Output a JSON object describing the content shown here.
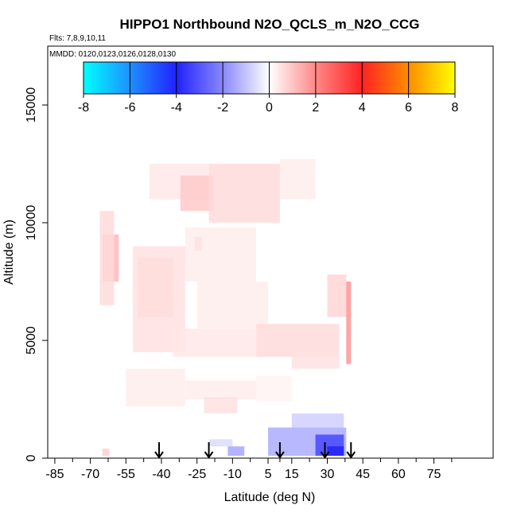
{
  "chart_data": {
    "type": "heatmap",
    "title": "HIPPO1 Northbound N2O_QCLS_m_N2O_CCG",
    "flights_label": "Flts: 7,8,9,10,11",
    "mmdd_label": "MMDD: 0120,0123,0126,0128,0130",
    "xlabel": "Latitude (deg N)",
    "ylabel": "Altitude (m)",
    "xlim": [
      -88,
      100
    ],
    "ylim": [
      0,
      17500
    ],
    "x_ticks": [
      -85,
      -70,
      -55,
      -40,
      -25,
      -10,
      5,
      15,
      30,
      45,
      60,
      75
    ],
    "x_tick_labels": [
      "-85",
      "-70",
      "-55",
      "-40",
      "-25",
      "-10",
      "5",
      "15",
      "30",
      "45",
      "60",
      "75"
    ],
    "y_ticks": [
      0,
      5000,
      10000,
      15000
    ],
    "y_tick_labels": [
      "0",
      "5000",
      "10000",
      "15000"
    ],
    "colorbar": {
      "ticks": [
        -8,
        -6,
        -4,
        -2,
        0,
        2,
        4,
        6,
        8
      ],
      "tick_labels": [
        "-8",
        "-6",
        "-4",
        "-2",
        "0",
        "2",
        "4",
        "6",
        "8"
      ],
      "stops": [
        {
          "v": -8,
          "c": "#00ffff"
        },
        {
          "v": -6,
          "c": "#1e90ff"
        },
        {
          "v": -4,
          "c": "#2222ff"
        },
        {
          "v": -2,
          "c": "#8888ff"
        },
        {
          "v": 0,
          "c": "#ffffff"
        },
        {
          "v": 2,
          "c": "#ff8888"
        },
        {
          "v": 4,
          "c": "#ff2222"
        },
        {
          "v": 6,
          "c": "#ff8c00"
        },
        {
          "v": 8,
          "c": "#ffff00"
        }
      ]
    },
    "flight_markers_lat": [
      -41,
      -20,
      10,
      29,
      40
    ],
    "cells": [
      {
        "lat0": -65,
        "lat1": -58,
        "alt0": 7500,
        "alt1": 9500,
        "v": 1.2
      },
      {
        "lat0": -66,
        "lat1": -60,
        "alt0": 6500,
        "alt1": 10500,
        "v": 0.6
      },
      {
        "lat0": -50,
        "lat1": -35,
        "alt0": 6000,
        "alt1": 8500,
        "v": 1.0
      },
      {
        "lat0": -52,
        "lat1": -30,
        "alt0": 4500,
        "alt1": 9000,
        "v": 0.5
      },
      {
        "lat0": -45,
        "lat1": -20,
        "alt0": 11000,
        "alt1": 12500,
        "v": 0.4
      },
      {
        "lat0": -32,
        "lat1": -18,
        "alt0": 10500,
        "alt1": 12000,
        "v": 0.9
      },
      {
        "lat0": -26,
        "lat1": -23,
        "alt0": 8800,
        "alt1": 9400,
        "v": 1.6
      },
      {
        "lat0": -20,
        "lat1": 10,
        "alt0": 10000,
        "alt1": 12500,
        "v": 0.6
      },
      {
        "lat0": 10,
        "lat1": 25,
        "alt0": 11000,
        "alt1": 12700,
        "v": 0.3
      },
      {
        "lat0": -30,
        "lat1": 0,
        "alt0": 7500,
        "alt1": 9800,
        "v": 0.3
      },
      {
        "lat0": -25,
        "lat1": 5,
        "alt0": 5500,
        "alt1": 7500,
        "v": 0.3
      },
      {
        "lat0": -35,
        "lat1": 0,
        "alt0": 4300,
        "alt1": 5500,
        "v": 0.4
      },
      {
        "lat0": 0,
        "lat1": 35,
        "alt0": 4300,
        "alt1": 5700,
        "v": 0.6
      },
      {
        "lat0": 15,
        "lat1": 35,
        "alt0": 3800,
        "alt1": 4500,
        "v": 0.5
      },
      {
        "lat0": 30,
        "lat1": 38,
        "alt0": 6000,
        "alt1": 7800,
        "v": 0.7
      },
      {
        "lat0": 38,
        "lat1": 40,
        "alt0": 4000,
        "alt1": 7500,
        "v": 1.8
      },
      {
        "lat0": -55,
        "lat1": -30,
        "alt0": 2200,
        "alt1": 3800,
        "v": 0.3
      },
      {
        "lat0": -30,
        "lat1": 0,
        "alt0": 2500,
        "alt1": 3300,
        "v": 0.3
      },
      {
        "lat0": -22,
        "lat1": -8,
        "alt0": 1900,
        "alt1": 2600,
        "v": 0.5
      },
      {
        "lat0": 0,
        "lat1": 15,
        "alt0": 2400,
        "alt1": 3500,
        "v": 0.2
      },
      {
        "lat0": -20,
        "lat1": -10,
        "alt0": 500,
        "alt1": 800,
        "v": -0.6
      },
      {
        "lat0": -12,
        "lat1": -5,
        "alt0": 100,
        "alt1": 500,
        "v": -1.5
      },
      {
        "lat0": 5,
        "lat1": 38,
        "alt0": 100,
        "alt1": 1300,
        "v": -1.4
      },
      {
        "lat0": 15,
        "lat1": 37,
        "alt0": 1300,
        "alt1": 1900,
        "v": -0.8
      },
      {
        "lat0": 25,
        "lat1": 37,
        "alt0": 100,
        "alt1": 1000,
        "v": -3.3
      },
      {
        "lat0": 30,
        "lat1": 37,
        "alt0": 100,
        "alt1": 500,
        "v": -4.0
      },
      {
        "lat0": -65,
        "lat1": -62,
        "alt0": 100,
        "alt1": 400,
        "v": 0.8
      }
    ]
  }
}
